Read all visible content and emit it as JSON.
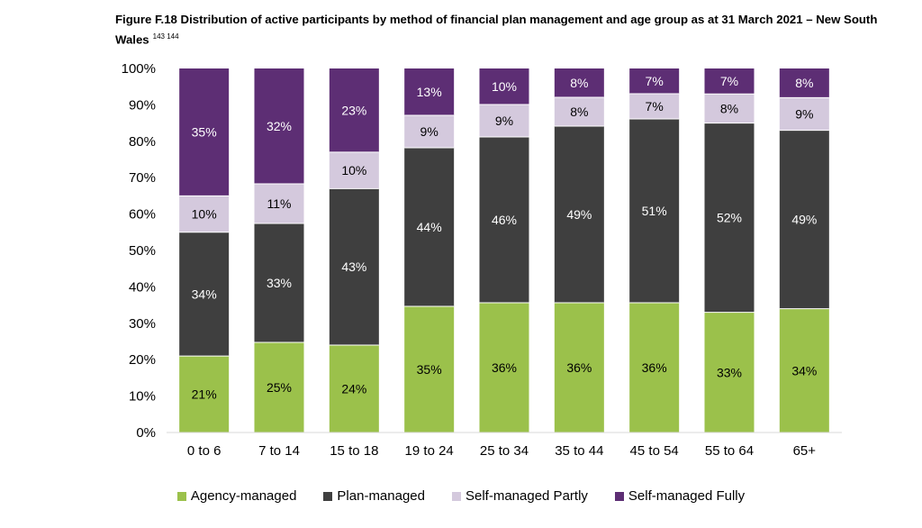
{
  "title": "Figure F.18 Distribution of active participants by method of financial plan management and age group as at 31 March 2021 – New South Wales",
  "footnotes": "143 144",
  "chart_data": {
    "type": "bar",
    "stacked": true,
    "percent_stacked": true,
    "categories": [
      "0 to 6",
      "7 to 14",
      "15 to 18",
      "19 to 24",
      "25 to 34",
      "35 to 44",
      "45 to 54",
      "55 to 64",
      "65+"
    ],
    "series": [
      {
        "name": "Agency-managed",
        "color": "#9bc14b",
        "values": [
          21,
          25,
          24,
          35,
          36,
          36,
          36,
          33,
          34
        ],
        "labels": [
          "21%",
          "25%",
          "24%",
          "35%",
          "36%",
          "36%",
          "36%",
          "33%",
          "34%"
        ]
      },
      {
        "name": "Plan-managed",
        "color": "#3f3f3f",
        "values": [
          34,
          33,
          43,
          44,
          46,
          49,
          51,
          52,
          49
        ],
        "labels": [
          "34%",
          "33%",
          "43%",
          "44%",
          "46%",
          "49%",
          "51%",
          "52%",
          "49%"
        ]
      },
      {
        "name": "Self-managed Partly",
        "color": "#d4c9dd",
        "values": [
          10,
          11,
          10,
          9,
          9,
          8,
          7,
          8,
          9
        ],
        "labels": [
          "10%",
          "11%",
          "10%",
          "9%",
          "9%",
          "8%",
          "7%",
          "8%",
          "9%"
        ]
      },
      {
        "name": "Self-managed Fully",
        "color": "#5d2e74",
        "values": [
          35,
          32,
          23,
          13,
          10,
          8,
          7,
          7,
          8
        ],
        "labels": [
          "35%",
          "32%",
          "23%",
          "13%",
          "10%",
          "8%",
          "7%",
          "7%",
          "8%"
        ]
      }
    ],
    "ylim": [
      0,
      100
    ],
    "yticks": [
      "0%",
      "10%",
      "20%",
      "30%",
      "40%",
      "50%",
      "60%",
      "70%",
      "80%",
      "90%",
      "100%"
    ],
    "legend_position": "bottom",
    "grid": false
  }
}
